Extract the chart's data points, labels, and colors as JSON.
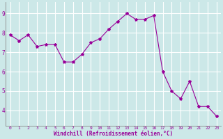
{
  "x": [
    0,
    1,
    2,
    3,
    4,
    5,
    6,
    7,
    8,
    9,
    10,
    11,
    12,
    13,
    14,
    15,
    16,
    17,
    18,
    19,
    20,
    21,
    22,
    23
  ],
  "y": [
    7.9,
    7.6,
    7.9,
    7.3,
    7.4,
    7.4,
    6.5,
    6.5,
    6.9,
    7.5,
    7.7,
    8.2,
    8.6,
    9.0,
    8.7,
    8.7,
    8.9,
    6.0,
    5.0,
    4.6,
    5.5,
    4.2,
    4.2,
    3.7
  ],
  "line_color": "#990099",
  "marker": "*",
  "marker_size": 3,
  "bg_color": "#cce8e8",
  "grid_color": "#ffffff",
  "xlabel": "Windchill (Refroidissement éolien,°C)",
  "xlabel_color": "#990099",
  "tick_color": "#990099",
  "spine_color": "#888888",
  "ylim": [
    3.2,
    9.6
  ],
  "xlim": [
    -0.5,
    23.5
  ],
  "yticks": [
    4,
    5,
    6,
    7,
    8,
    9
  ],
  "xticks": [
    0,
    1,
    2,
    3,
    4,
    5,
    6,
    7,
    8,
    9,
    10,
    11,
    12,
    13,
    14,
    15,
    16,
    17,
    18,
    19,
    20,
    21,
    22,
    23
  ]
}
